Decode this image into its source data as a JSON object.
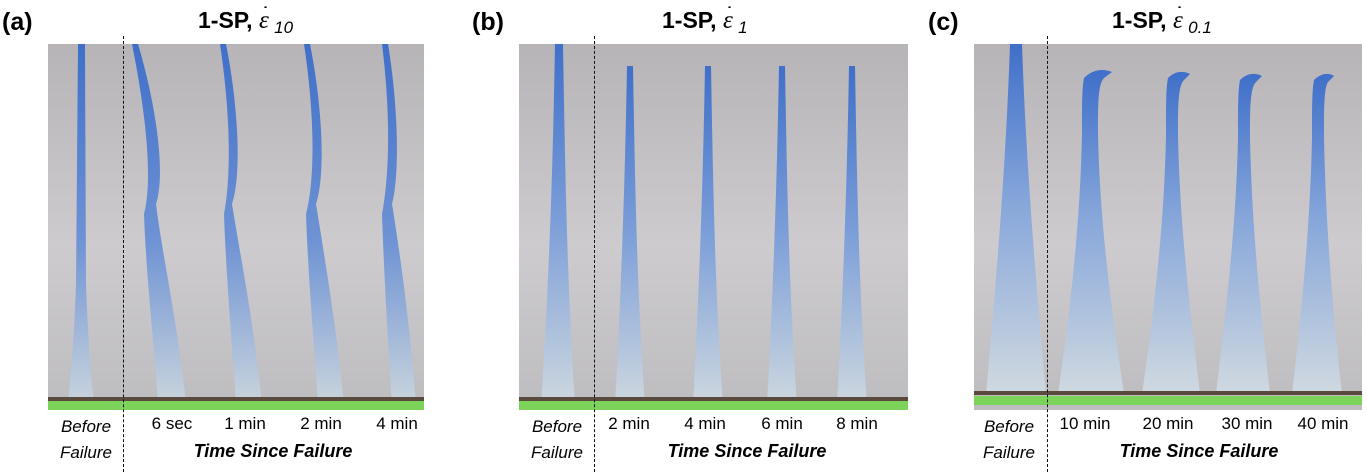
{
  "panels": [
    {
      "letter": "(a)",
      "title_main": "1-SP, ",
      "title_symbol": "ε",
      "title_sub": "10",
      "before_line1": "Before",
      "before_line2": "Failure",
      "times": [
        "6 sec",
        "1 min",
        "2 min",
        "4 min"
      ],
      "since_label": "Time Since Failure"
    },
    {
      "letter": "(b)",
      "title_main": "1-SP, ",
      "title_symbol": "ε",
      "title_sub": "1",
      "before_line1": "Before",
      "before_line2": "Failure",
      "times": [
        "2 min",
        "4 min",
        "6 min",
        "8 min"
      ],
      "since_label": "Time Since Failure"
    },
    {
      "letter": "(c)",
      "title_main": "1-SP, ",
      "title_symbol": "ε",
      "title_sub": "0.1",
      "before_line1": "Before",
      "before_line2": "Failure",
      "times": [
        "10 min",
        "20 min",
        "30 min",
        "40 min"
      ],
      "since_label": "Time Since Failure"
    }
  ],
  "colors": {
    "specimen_blue": "#3f6fc9",
    "specimen_base": "#c8d3dc",
    "background_gray": "#c3c1c4",
    "ground_green": "#7bd35a"
  }
}
